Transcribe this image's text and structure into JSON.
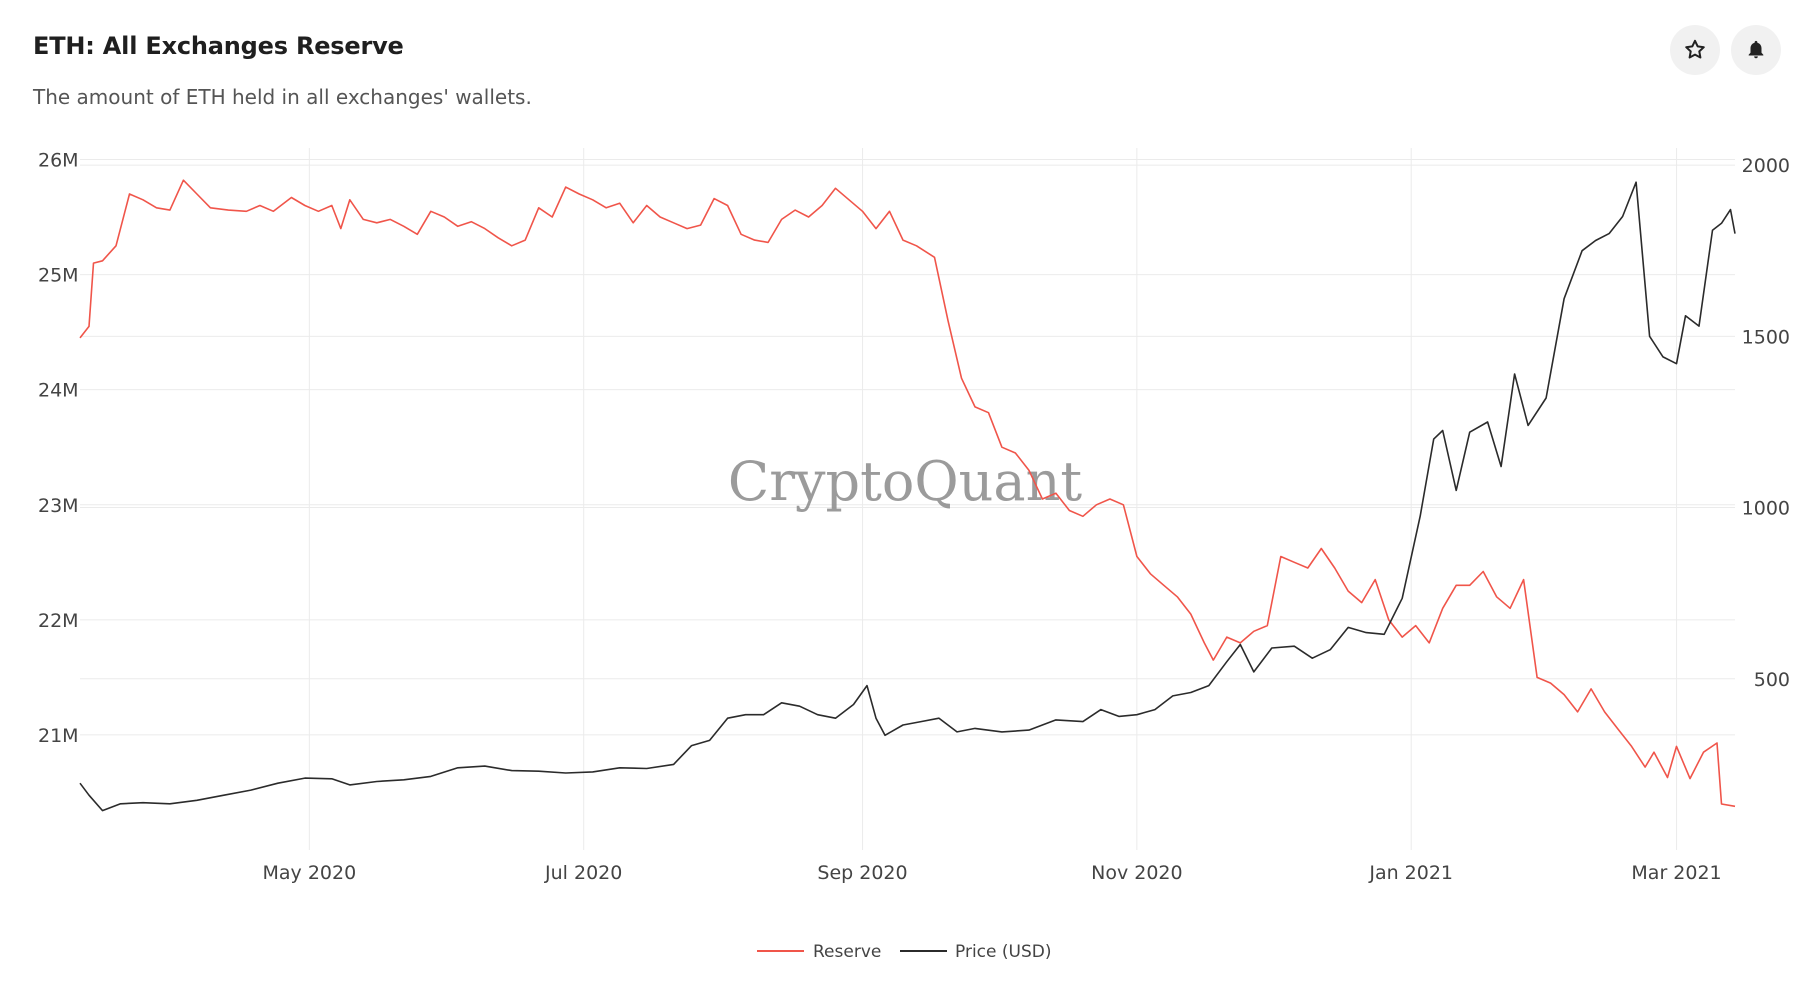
{
  "header": {
    "title": "ETH: All Exchanges Reserve",
    "subtitle": "The amount of ETH held in all exchanges' wallets.",
    "favorite_icon": "star-icon",
    "alert_icon": "bell-icon"
  },
  "watermark": "CryptoQuant",
  "colors": {
    "reserve": "#f0554a",
    "price": "#2b2b2b",
    "grid": "#ebebeb",
    "icon_bg": "#f1f1f1"
  },
  "chart_data": {
    "type": "line",
    "x_range": [
      "2020-03-11",
      "2021-03-14"
    ],
    "x_ticks": [
      {
        "date": "2020-05-01",
        "label": "May 2020"
      },
      {
        "date": "2020-07-01",
        "label": "Jul 2020"
      },
      {
        "date": "2020-09-01",
        "label": "Sep 2020"
      },
      {
        "date": "2020-11-01",
        "label": "Nov 2020"
      },
      {
        "date": "2021-01-01",
        "label": "Jan 2021"
      },
      {
        "date": "2021-03-01",
        "label": "Mar 2021"
      }
    ],
    "y_left": {
      "ticks": [
        21000000,
        22000000,
        23000000,
        24000000,
        25000000,
        26000000
      ],
      "tick_labels": [
        "21M",
        "22M",
        "23M",
        "24M",
        "25M",
        "26M"
      ],
      "range": [
        20000000,
        26100000
      ]
    },
    "y_right": {
      "ticks": [
        500,
        1000,
        1500,
        2000
      ],
      "tick_labels": [
        "500",
        "1000",
        "1500",
        "2000"
      ],
      "range": [
        0,
        2050
      ]
    },
    "grid": true,
    "legend_position": "bottom-center",
    "series": [
      {
        "name": "Reserve",
        "axis": "left",
        "color": "#f0554a",
        "points": [
          [
            "2020-03-11",
            24450000
          ],
          [
            "2020-03-13",
            24550000
          ],
          [
            "2020-03-14",
            25100000
          ],
          [
            "2020-03-16",
            25120000
          ],
          [
            "2020-03-19",
            25250000
          ],
          [
            "2020-03-22",
            25700000
          ],
          [
            "2020-03-25",
            25650000
          ],
          [
            "2020-03-28",
            25580000
          ],
          [
            "2020-03-31",
            25560000
          ],
          [
            "2020-04-03",
            25820000
          ],
          [
            "2020-04-06",
            25700000
          ],
          [
            "2020-04-09",
            25580000
          ],
          [
            "2020-04-13",
            25560000
          ],
          [
            "2020-04-17",
            25550000
          ],
          [
            "2020-04-20",
            25600000
          ],
          [
            "2020-04-23",
            25550000
          ],
          [
            "2020-04-27",
            25670000
          ],
          [
            "2020-04-30",
            25600000
          ],
          [
            "2020-05-03",
            25550000
          ],
          [
            "2020-05-06",
            25600000
          ],
          [
            "2020-05-08",
            25400000
          ],
          [
            "2020-05-10",
            25650000
          ],
          [
            "2020-05-13",
            25480000
          ],
          [
            "2020-05-16",
            25450000
          ],
          [
            "2020-05-19",
            25480000
          ],
          [
            "2020-05-22",
            25420000
          ],
          [
            "2020-05-25",
            25350000
          ],
          [
            "2020-05-28",
            25550000
          ],
          [
            "2020-05-31",
            25500000
          ],
          [
            "2020-06-03",
            25420000
          ],
          [
            "2020-06-06",
            25460000
          ],
          [
            "2020-06-09",
            25400000
          ],
          [
            "2020-06-12",
            25320000
          ],
          [
            "2020-06-15",
            25250000
          ],
          [
            "2020-06-18",
            25300000
          ],
          [
            "2020-06-21",
            25580000
          ],
          [
            "2020-06-24",
            25500000
          ],
          [
            "2020-06-27",
            25760000
          ],
          [
            "2020-06-30",
            25700000
          ],
          [
            "2020-07-03",
            25650000
          ],
          [
            "2020-07-06",
            25580000
          ],
          [
            "2020-07-09",
            25620000
          ],
          [
            "2020-07-12",
            25450000
          ],
          [
            "2020-07-15",
            25600000
          ],
          [
            "2020-07-18",
            25500000
          ],
          [
            "2020-07-21",
            25450000
          ],
          [
            "2020-07-24",
            25400000
          ],
          [
            "2020-07-27",
            25430000
          ],
          [
            "2020-07-30",
            25660000
          ],
          [
            "2020-08-02",
            25600000
          ],
          [
            "2020-08-05",
            25350000
          ],
          [
            "2020-08-08",
            25300000
          ],
          [
            "2020-08-11",
            25280000
          ],
          [
            "2020-08-14",
            25480000
          ],
          [
            "2020-08-17",
            25560000
          ],
          [
            "2020-08-20",
            25500000
          ],
          [
            "2020-08-23",
            25600000
          ],
          [
            "2020-08-26",
            25750000
          ],
          [
            "2020-08-29",
            25650000
          ],
          [
            "2020-09-01",
            25550000
          ],
          [
            "2020-09-04",
            25400000
          ],
          [
            "2020-09-07",
            25550000
          ],
          [
            "2020-09-10",
            25300000
          ],
          [
            "2020-09-13",
            25250000
          ],
          [
            "2020-09-17",
            25150000
          ],
          [
            "2020-09-20",
            24600000
          ],
          [
            "2020-09-23",
            24100000
          ],
          [
            "2020-09-26",
            23850000
          ],
          [
            "2020-09-29",
            23800000
          ],
          [
            "2020-10-02",
            23500000
          ],
          [
            "2020-10-05",
            23450000
          ],
          [
            "2020-10-08",
            23300000
          ],
          [
            "2020-10-11",
            23050000
          ],
          [
            "2020-10-14",
            23100000
          ],
          [
            "2020-10-17",
            22950000
          ],
          [
            "2020-10-20",
            22900000
          ],
          [
            "2020-10-23",
            23000000
          ],
          [
            "2020-10-26",
            23050000
          ],
          [
            "2020-10-29",
            23000000
          ],
          [
            "2020-11-01",
            22550000
          ],
          [
            "2020-11-04",
            22400000
          ],
          [
            "2020-11-07",
            22300000
          ],
          [
            "2020-11-10",
            22200000
          ],
          [
            "2020-11-13",
            22050000
          ],
          [
            "2020-11-16",
            21800000
          ],
          [
            "2020-11-18",
            21650000
          ],
          [
            "2020-11-21",
            21850000
          ],
          [
            "2020-11-24",
            21800000
          ],
          [
            "2020-11-27",
            21900000
          ],
          [
            "2020-11-30",
            21950000
          ],
          [
            "2020-12-03",
            22550000
          ],
          [
            "2020-12-06",
            22500000
          ],
          [
            "2020-12-09",
            22450000
          ],
          [
            "2020-12-12",
            22620000
          ],
          [
            "2020-12-15",
            22450000
          ],
          [
            "2020-12-18",
            22250000
          ],
          [
            "2020-12-21",
            22150000
          ],
          [
            "2020-12-24",
            22350000
          ],
          [
            "2020-12-27",
            22000000
          ],
          [
            "2020-12-30",
            21850000
          ],
          [
            "2021-01-02",
            21950000
          ],
          [
            "2021-01-05",
            21800000
          ],
          [
            "2021-01-08",
            22100000
          ],
          [
            "2021-01-11",
            22300000
          ],
          [
            "2021-01-14",
            22300000
          ],
          [
            "2021-01-17",
            22420000
          ],
          [
            "2021-01-20",
            22200000
          ],
          [
            "2021-01-23",
            22100000
          ],
          [
            "2021-01-26",
            22350000
          ],
          [
            "2021-01-29",
            21500000
          ],
          [
            "2021-02-01",
            21450000
          ],
          [
            "2021-02-04",
            21350000
          ],
          [
            "2021-02-07",
            21200000
          ],
          [
            "2021-02-10",
            21400000
          ],
          [
            "2021-02-13",
            21200000
          ],
          [
            "2021-02-16",
            21050000
          ],
          [
            "2021-02-19",
            20900000
          ],
          [
            "2021-02-22",
            20720000
          ],
          [
            "2021-02-24",
            20850000
          ],
          [
            "2021-02-27",
            20630000
          ],
          [
            "2021-03-01",
            20900000
          ],
          [
            "2021-03-04",
            20620000
          ],
          [
            "2021-03-07",
            20850000
          ],
          [
            "2021-03-10",
            20930000
          ],
          [
            "2021-03-11",
            20400000
          ],
          [
            "2021-03-14",
            20380000
          ]
        ]
      },
      {
        "name": "Price (USD)",
        "axis": "right",
        "color": "#2b2b2b",
        "points": [
          [
            "2020-03-11",
            195
          ],
          [
            "2020-03-13",
            160
          ],
          [
            "2020-03-16",
            115
          ],
          [
            "2020-03-20",
            135
          ],
          [
            "2020-03-25",
            138
          ],
          [
            "2020-03-31",
            135
          ],
          [
            "2020-04-06",
            145
          ],
          [
            "2020-04-12",
            160
          ],
          [
            "2020-04-18",
            175
          ],
          [
            "2020-04-24",
            195
          ],
          [
            "2020-04-30",
            210
          ],
          [
            "2020-05-06",
            208
          ],
          [
            "2020-05-10",
            190
          ],
          [
            "2020-05-16",
            200
          ],
          [
            "2020-05-22",
            205
          ],
          [
            "2020-05-28",
            215
          ],
          [
            "2020-06-03",
            240
          ],
          [
            "2020-06-09",
            245
          ],
          [
            "2020-06-15",
            232
          ],
          [
            "2020-06-21",
            230
          ],
          [
            "2020-06-27",
            225
          ],
          [
            "2020-07-03",
            228
          ],
          [
            "2020-07-09",
            240
          ],
          [
            "2020-07-15",
            238
          ],
          [
            "2020-07-21",
            250
          ],
          [
            "2020-07-25",
            305
          ],
          [
            "2020-07-29",
            320
          ],
          [
            "2020-08-02",
            385
          ],
          [
            "2020-08-06",
            395
          ],
          [
            "2020-08-10",
            395
          ],
          [
            "2020-08-14",
            430
          ],
          [
            "2020-08-18",
            420
          ],
          [
            "2020-08-22",
            395
          ],
          [
            "2020-08-26",
            385
          ],
          [
            "2020-08-30",
            425
          ],
          [
            "2020-09-02",
            480
          ],
          [
            "2020-09-04",
            385
          ],
          [
            "2020-09-06",
            335
          ],
          [
            "2020-09-10",
            365
          ],
          [
            "2020-09-14",
            375
          ],
          [
            "2020-09-18",
            385
          ],
          [
            "2020-09-22",
            345
          ],
          [
            "2020-09-26",
            355
          ],
          [
            "2020-10-02",
            345
          ],
          [
            "2020-10-08",
            350
          ],
          [
            "2020-10-14",
            380
          ],
          [
            "2020-10-20",
            375
          ],
          [
            "2020-10-24",
            410
          ],
          [
            "2020-10-28",
            390
          ],
          [
            "2020-11-01",
            395
          ],
          [
            "2020-11-05",
            410
          ],
          [
            "2020-11-09",
            450
          ],
          [
            "2020-11-13",
            460
          ],
          [
            "2020-11-17",
            480
          ],
          [
            "2020-11-21",
            550
          ],
          [
            "2020-11-24",
            600
          ],
          [
            "2020-11-27",
            520
          ],
          [
            "2020-12-01",
            590
          ],
          [
            "2020-12-06",
            595
          ],
          [
            "2020-12-10",
            560
          ],
          [
            "2020-12-14",
            585
          ],
          [
            "2020-12-18",
            650
          ],
          [
            "2020-12-22",
            635
          ],
          [
            "2020-12-26",
            630
          ],
          [
            "2020-12-30",
            735
          ],
          [
            "2021-01-03",
            975
          ],
          [
            "2021-01-06",
            1200
          ],
          [
            "2021-01-08",
            1225
          ],
          [
            "2021-01-11",
            1050
          ],
          [
            "2021-01-14",
            1220
          ],
          [
            "2021-01-18",
            1250
          ],
          [
            "2021-01-21",
            1120
          ],
          [
            "2021-01-24",
            1390
          ],
          [
            "2021-01-27",
            1240
          ],
          [
            "2021-01-31",
            1320
          ],
          [
            "2021-02-04",
            1610
          ],
          [
            "2021-02-08",
            1750
          ],
          [
            "2021-02-11",
            1780
          ],
          [
            "2021-02-14",
            1800
          ],
          [
            "2021-02-17",
            1850
          ],
          [
            "2021-02-20",
            1950
          ],
          [
            "2021-02-23",
            1500
          ],
          [
            "2021-02-26",
            1440
          ],
          [
            "2021-03-01",
            1420
          ],
          [
            "2021-03-03",
            1560
          ],
          [
            "2021-03-06",
            1530
          ],
          [
            "2021-03-09",
            1810
          ],
          [
            "2021-03-11",
            1830
          ],
          [
            "2021-03-13",
            1870
          ],
          [
            "2021-03-14",
            1800
          ]
        ]
      }
    ]
  }
}
